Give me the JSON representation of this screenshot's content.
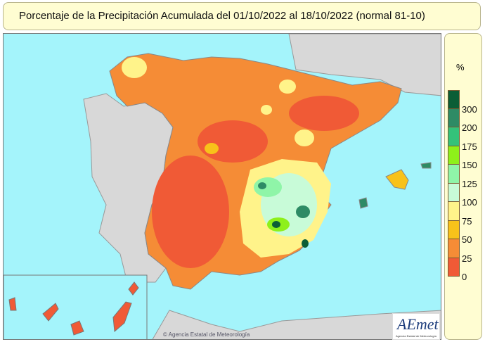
{
  "title": "Porcentaje de la Precipitación Acumulada del 01/10/2022 al 18/10/2022 (normal 81-10)",
  "legend": {
    "unit": "%",
    "labels": [
      "300",
      "200",
      "175",
      "150",
      "125",
      "100",
      "75",
      "50",
      "25",
      "0"
    ],
    "colors": [
      "#0b5e36",
      "#2e8b65",
      "#34c27a",
      "#8ef01a",
      "#8ff5a8",
      "#c8fbd8",
      "#fff38a",
      "#f8c21a",
      "#f58c36",
      "#f05a36"
    ]
  },
  "colors": {
    "sea": "#a4f4fb",
    "land": "#d8d8d8"
  },
  "copyright": "© Agencia Estatal de Meteorología",
  "logo": {
    "text": "AEmet",
    "subtitle": "Agencia Estatal de Meteorología"
  }
}
